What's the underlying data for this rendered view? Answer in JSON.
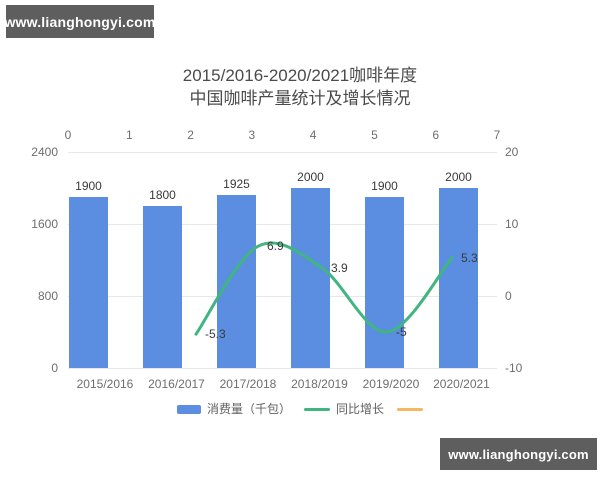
{
  "watermark": {
    "text": "www.lianghongyi.com"
  },
  "title": {
    "line1": "2015/2016-2020/2021咖啡年度",
    "line2": "中国咖啡产量统计及增长情况"
  },
  "chart_data": {
    "type": "combo",
    "categories": [
      "2015/2016",
      "2016/2017",
      "2017/2018",
      "2018/2019",
      "2019/2020",
      "2020/2021"
    ],
    "series": [
      {
        "name": "消费量（千包）",
        "type": "bar",
        "axis": "left",
        "color": "#5b8ee0",
        "values": [
          1900,
          1800,
          1925,
          2000,
          1900,
          2000
        ]
      },
      {
        "name": "同比增长",
        "type": "line",
        "axis": "right",
        "color": "#41b580",
        "values": [
          null,
          -5.3,
          6.9,
          3.9,
          -5,
          5.3
        ]
      },
      {
        "name": "",
        "type": "line",
        "axis": "right",
        "color": "#f2b95e",
        "values": []
      }
    ],
    "axes": {
      "left": {
        "ticks": [
          0,
          800,
          1600,
          2400
        ],
        "range": [
          0,
          2400
        ]
      },
      "right": {
        "ticks": [
          -10,
          0,
          10,
          20
        ],
        "range": [
          -10,
          20
        ]
      },
      "top": {
        "ticks": [
          0,
          1,
          2,
          3,
          4,
          5,
          6,
          7
        ],
        "range": [
          0,
          7
        ]
      }
    },
    "grid": true,
    "legend_position": "bottom",
    "colors": {
      "grid": "#e8e8e8",
      "axis_text": "#6e6e6e",
      "value_text": "#3a3a3a",
      "title_text": "#4b4b4b",
      "badge_bg": "#5e5e5e"
    }
  }
}
